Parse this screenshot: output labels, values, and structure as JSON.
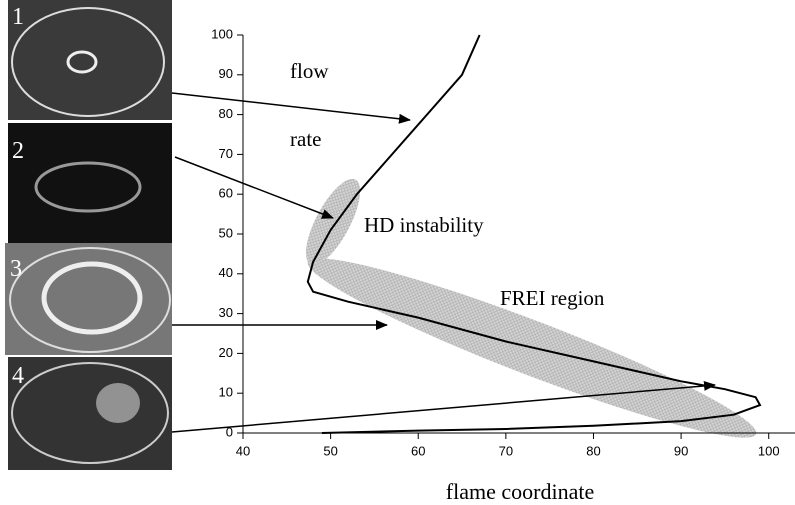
{
  "chart_data": {
    "type": "line",
    "x_label": "flame coordinate",
    "annotations": [
      "flow",
      "rate",
      "HD instability",
      "FREI region"
    ],
    "image_labels": [
      "1",
      "2",
      "3",
      "4"
    ],
    "xlim": [
      40,
      103
    ],
    "ylim": [
      0,
      100
    ],
    "xticks": [
      40,
      50,
      60,
      70,
      80,
      90,
      100
    ],
    "yticks": [
      0,
      10,
      20,
      30,
      40,
      50,
      60,
      70,
      80,
      90,
      100
    ],
    "grid": false,
    "series": [
      {
        "color": "#000000",
        "x": [
          49,
          60,
          70,
          80,
          90,
          96,
          99,
          98.5,
          95,
          90,
          80,
          70,
          60,
          52,
          48,
          47.4,
          48,
          50,
          53,
          57,
          61,
          65,
          67
        ],
        "values": [
          0,
          0.6,
          1,
          1.8,
          3,
          4.6,
          7,
          9,
          11,
          13,
          18,
          23,
          29,
          33,
          35.5,
          38,
          43,
          51,
          60,
          70,
          80,
          90,
          100
        ]
      }
    ]
  }
}
